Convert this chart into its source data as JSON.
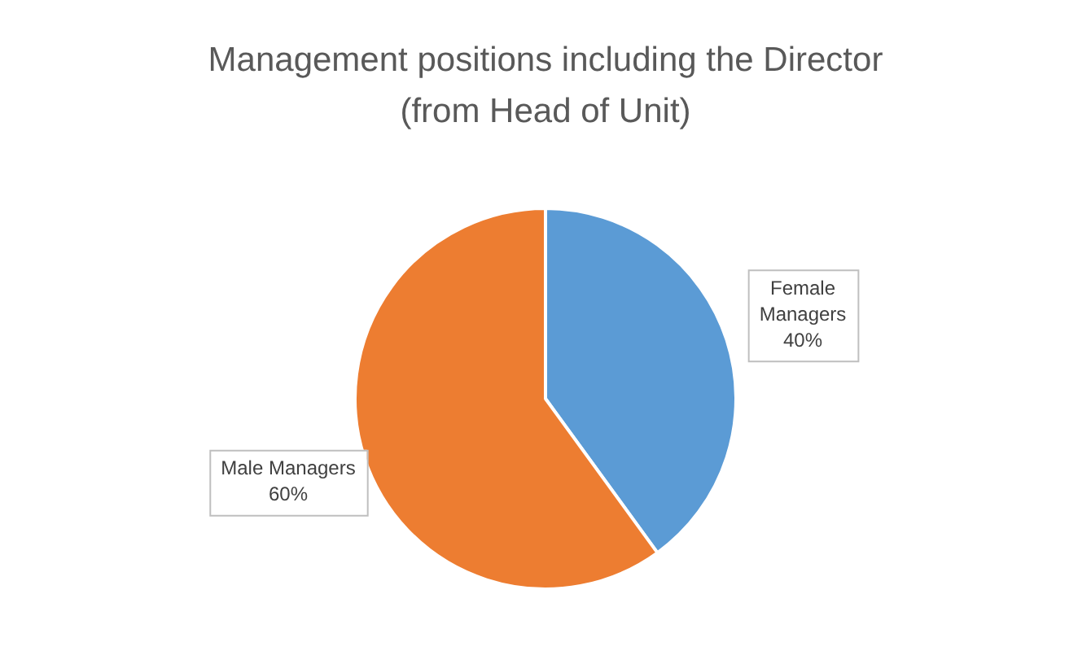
{
  "chart_data": {
    "type": "pie",
    "title": "Management positions including the Director\n(from Head of Unit)",
    "categories": [
      "Female Managers",
      "Male Managers"
    ],
    "values": [
      40,
      60
    ],
    "colors": [
      "#5b9bd5",
      "#ed7d31"
    ],
    "value_labels": [
      "40%",
      "60%"
    ]
  }
}
